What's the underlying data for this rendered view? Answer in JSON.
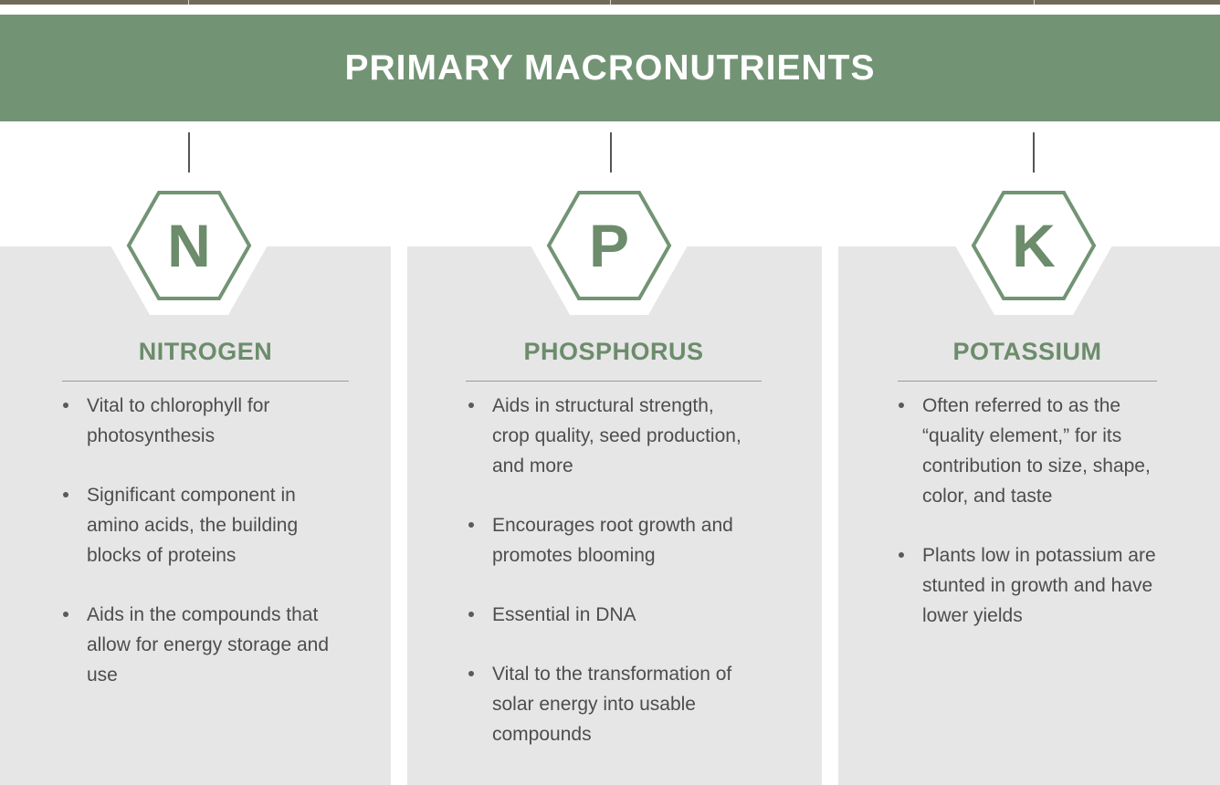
{
  "banner": {
    "title": "PRIMARY MACRONUTRIENTS"
  },
  "nutrients": [
    {
      "symbol": "N",
      "name": "NITROGEN",
      "points": [
        "Vital to chlorophyll for photosynthesis",
        "Significant component in amino acids, the building blocks of proteins",
        "Aids in the compounds that allow for energy storage and use"
      ]
    },
    {
      "symbol": "P",
      "name": "PHOSPHORUS",
      "points": [
        "Aids in structural strength, crop quality, seed production, and more",
        "Encourages root growth and promotes blooming",
        "Essential in DNA",
        "Vital to the transformation of solar energy into usable compounds"
      ]
    },
    {
      "symbol": "K",
      "name": "POTASSIUM",
      "points": [
        "Often referred to as the “quality element,” for its contribution to size, shape, color, and taste",
        "Plants low in potassium are stunted in growth and have lower yields"
      ]
    }
  ],
  "colors": {
    "accent_green": "#729474",
    "text_green": "#6c8c6c",
    "panel_gray": "#e6e6e6",
    "top_bar": "#6f6a5a"
  }
}
